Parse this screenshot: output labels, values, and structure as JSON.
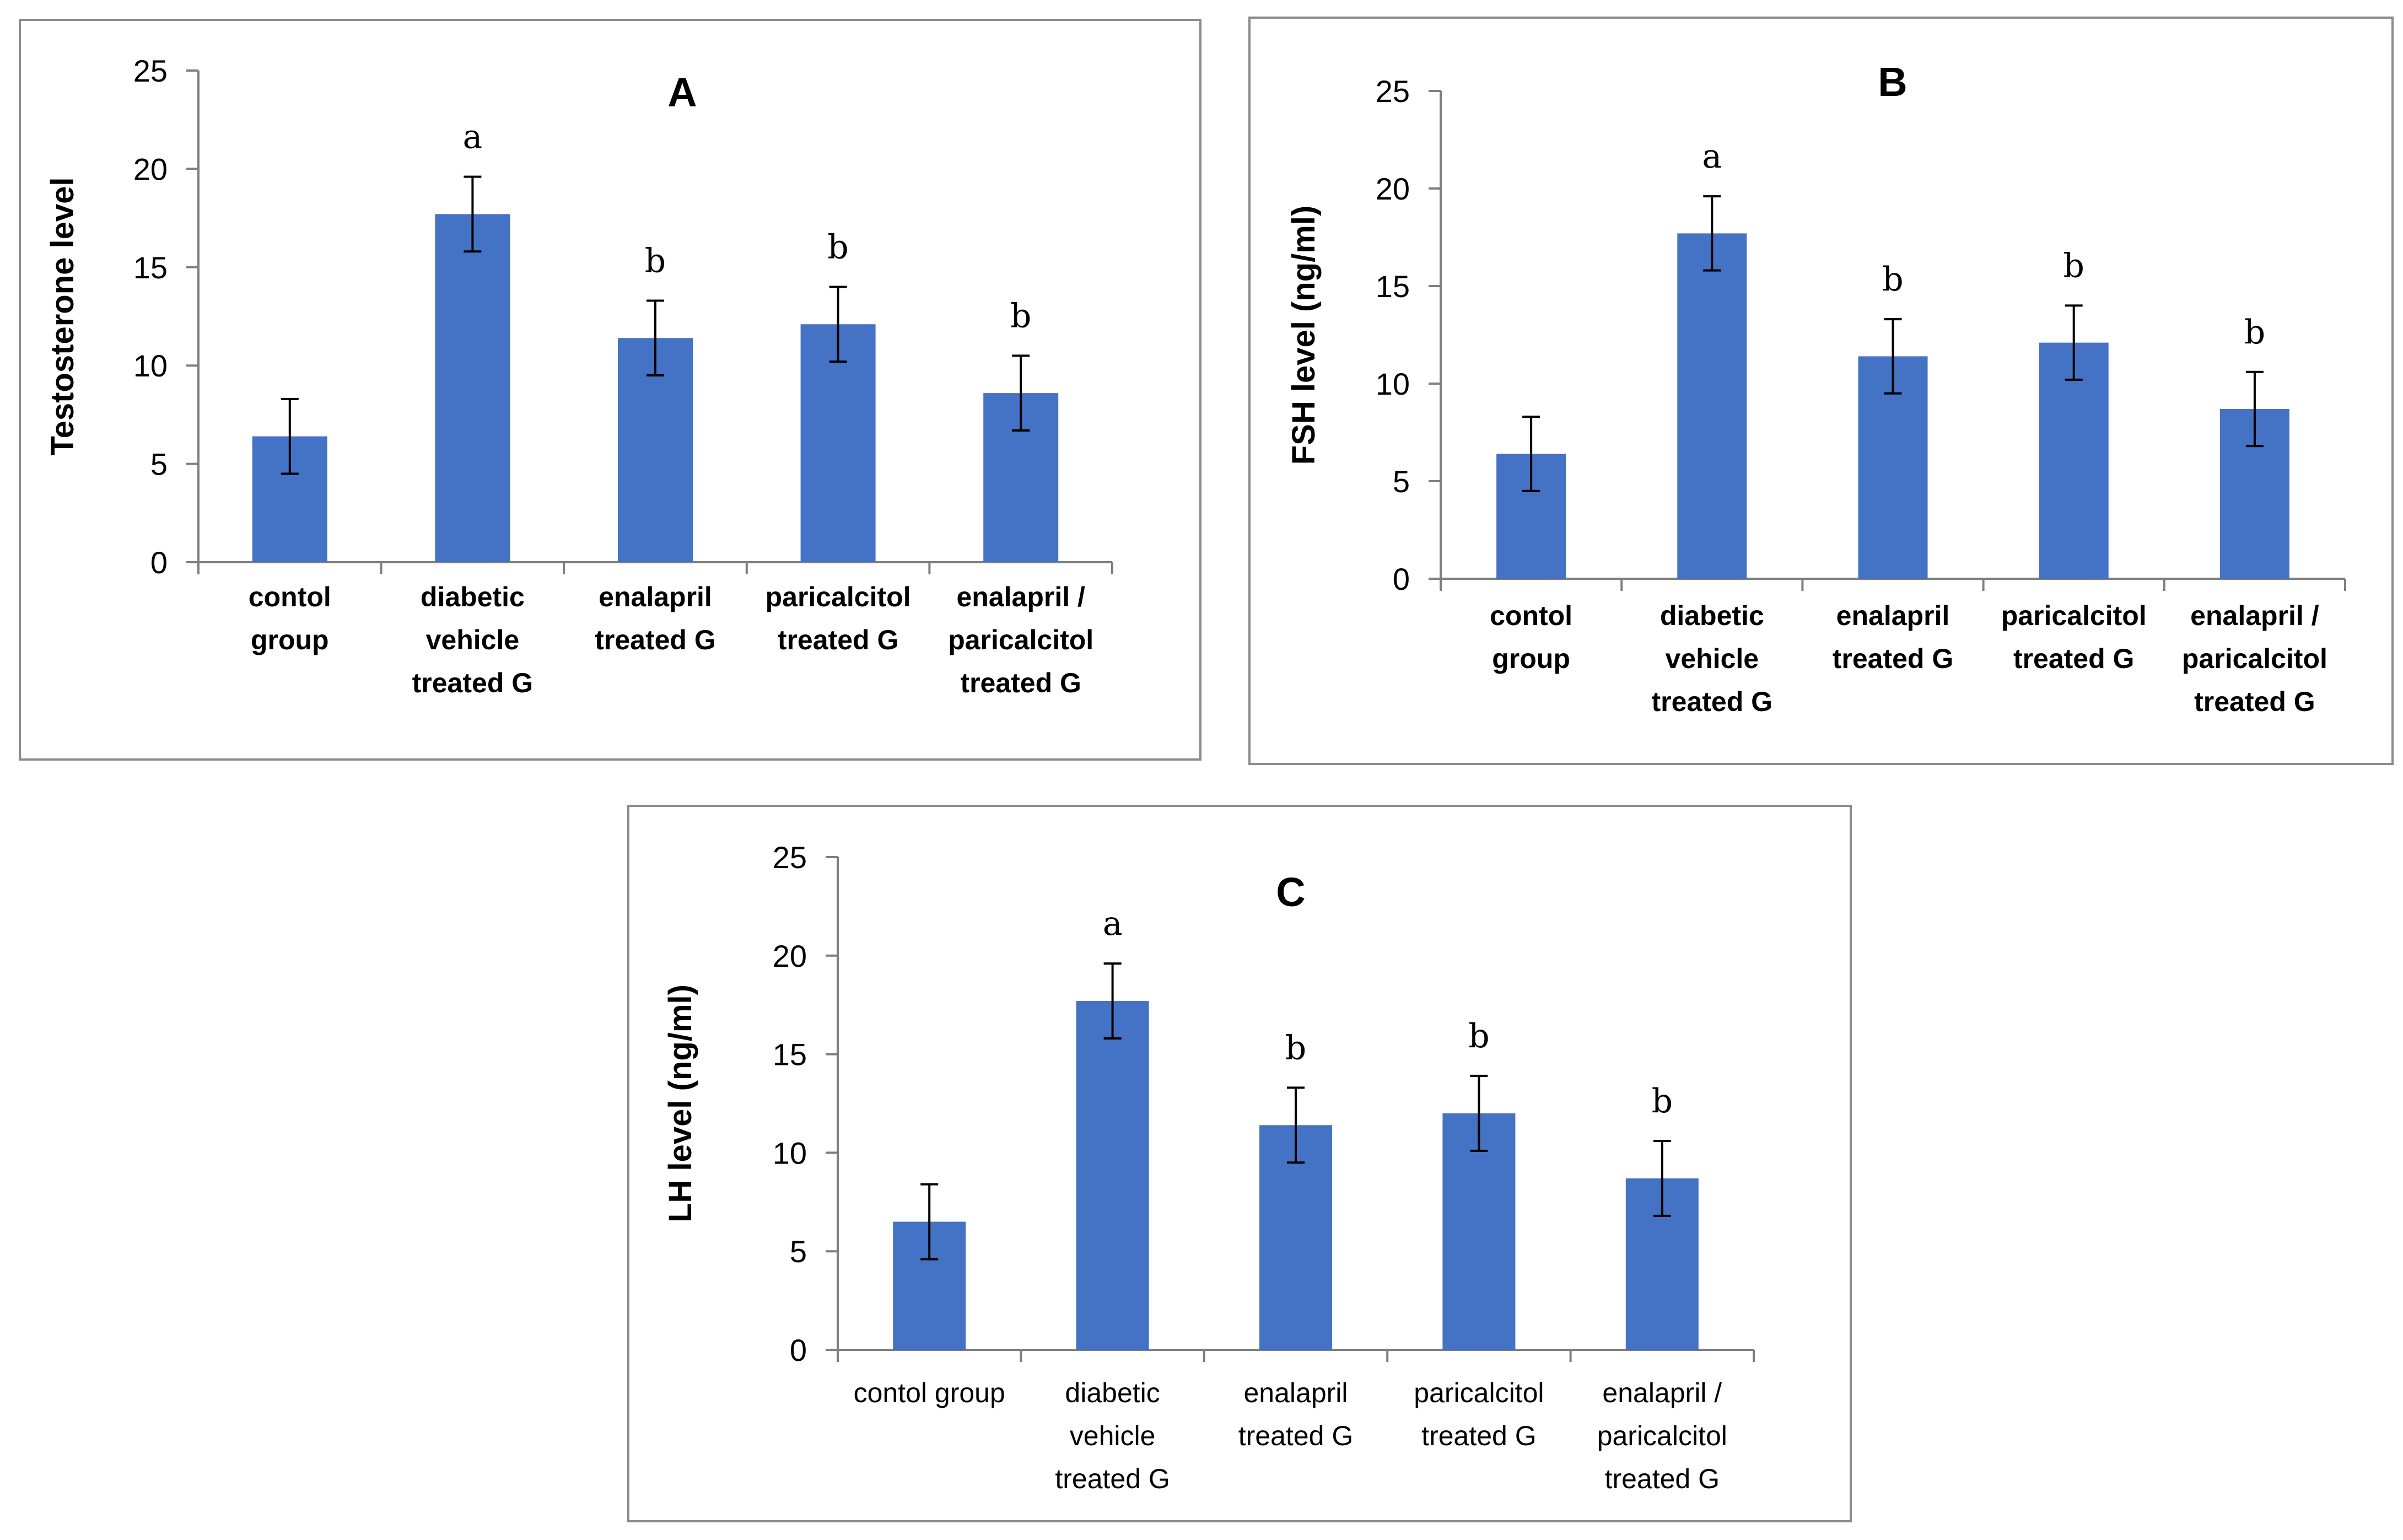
{
  "bar_color": "#4472C4",
  "chart_data": [
    {
      "type": "bar",
      "title": "A",
      "xlabel": "",
      "ylabel": "Testosterone level",
      "ylim": [
        0,
        25
      ],
      "yticks": [
        0,
        5,
        10,
        15,
        20,
        25
      ],
      "categories": [
        [
          "contol",
          "group"
        ],
        [
          "diabetic",
          "vehicle",
          "treated G"
        ],
        [
          "enalapril",
          "treated G"
        ],
        [
          "paricalcitol",
          "treated G"
        ],
        [
          "enalapril /",
          "paricalcitol",
          "treated G"
        ]
      ],
      "values": [
        6.4,
        17.7,
        11.4,
        12.1,
        8.6
      ],
      "errors": [
        1.9,
        1.9,
        1.9,
        1.9,
        1.9
      ],
      "significance": [
        "",
        "a",
        "b",
        "b",
        "b"
      ]
    },
    {
      "type": "bar",
      "title": "B",
      "xlabel": "",
      "ylabel": "FSH level (ng/ml)",
      "ylim": [
        0,
        25
      ],
      "yticks": [
        0,
        5,
        10,
        15,
        20,
        25
      ],
      "categories": [
        [
          "contol",
          "group"
        ],
        [
          "diabetic",
          "vehicle",
          "treated G"
        ],
        [
          "enalapril",
          "treated G"
        ],
        [
          "paricalcitol",
          "treated G"
        ],
        [
          "enalapril /",
          "paricalcitol",
          "treated G"
        ]
      ],
      "values": [
        6.4,
        17.7,
        11.4,
        12.1,
        8.7
      ],
      "errors": [
        1.9,
        1.9,
        1.9,
        1.9,
        1.9
      ],
      "significance": [
        "",
        "a",
        "b",
        "b",
        "b"
      ]
    },
    {
      "type": "bar",
      "title": "C",
      "xlabel": "",
      "ylabel": "LH level (ng/ml)",
      "ylim": [
        0,
        25
      ],
      "yticks": [
        0,
        5,
        10,
        15,
        20,
        25
      ],
      "categories": [
        [
          "contol group"
        ],
        [
          "diabetic",
          "vehicle",
          "treated G"
        ],
        [
          "enalapril",
          "treated G"
        ],
        [
          "paricalcitol",
          "treated G"
        ],
        [
          "enalapril /",
          "paricalcitol",
          "treated G"
        ]
      ],
      "values": [
        6.5,
        17.7,
        11.4,
        12.0,
        8.7
      ],
      "errors": [
        1.9,
        1.9,
        1.9,
        1.9,
        1.9
      ],
      "significance": [
        "",
        "a",
        "b",
        "b",
        "b"
      ]
    }
  ]
}
